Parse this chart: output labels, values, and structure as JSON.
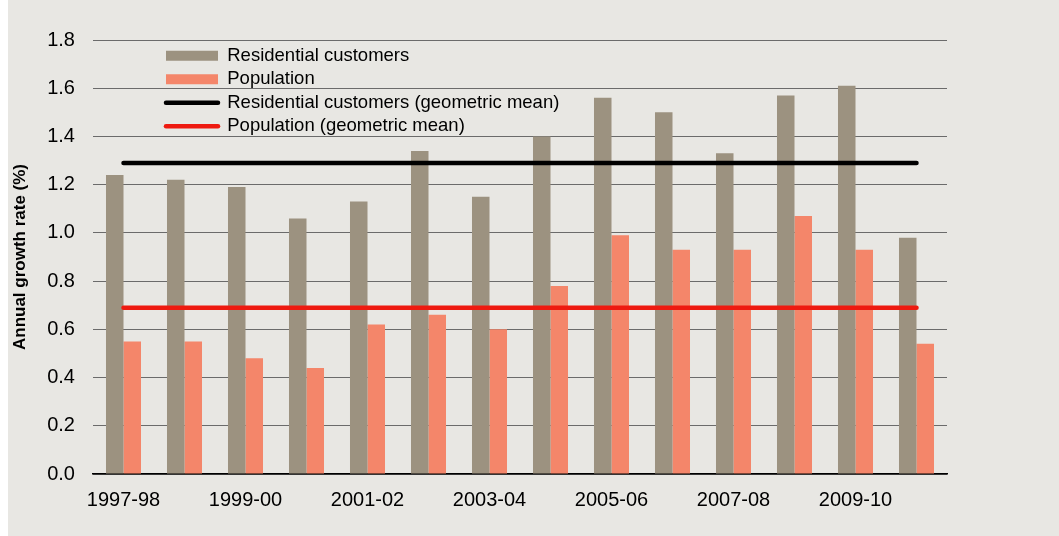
{
  "chart_data": {
    "type": "bar",
    "ylabel": "Annual growth rate (%)",
    "categories": [
      "1997-98",
      null,
      "1999-00",
      null,
      "2001-02",
      null,
      "2003-04",
      null,
      "2005-06",
      null,
      "2007-08",
      null,
      "2009-10",
      null
    ],
    "series": [
      {
        "name": "Residential customers",
        "color": "#9c9280",
        "values": [
          1.24,
          1.22,
          1.19,
          1.06,
          1.13,
          1.34,
          1.15,
          1.4,
          1.56,
          1.5,
          1.33,
          1.57,
          1.61,
          0.98
        ]
      },
      {
        "name": "Population",
        "color": "#f4866a",
        "values": [
          0.55,
          0.55,
          0.48,
          0.44,
          0.62,
          0.66,
          0.6,
          0.78,
          0.99,
          0.93,
          0.93,
          1.07,
          0.93,
          0.54
        ]
      },
      {
        "type": "line",
        "name": "Residential customers (geometric mean)",
        "color": "#000000",
        "values": [
          1.29,
          1.29,
          1.29,
          1.29,
          1.29,
          1.29,
          1.29,
          1.29,
          1.29,
          1.29,
          1.29,
          1.29,
          1.29,
          1.29
        ]
      },
      {
        "type": "line",
        "name": "Population (geometric mean)",
        "color": "#ee1a10",
        "values": [
          0.69,
          0.69,
          0.69,
          0.69,
          0.69,
          0.69,
          0.69,
          0.69,
          0.69,
          0.69,
          0.69,
          0.69,
          0.69,
          0.69
        ]
      }
    ],
    "ylim": [
      0,
      1.8
    ],
    "yticks": [
      {
        "value": 0,
        "label": "0.0"
      },
      0.2,
      0.4,
      0.6,
      0.8,
      {
        "value": 1,
        "label": "1.0"
      },
      1.2,
      1.4,
      1.6,
      1.8
    ],
    "grid": "y",
    "legend": "top left"
  }
}
